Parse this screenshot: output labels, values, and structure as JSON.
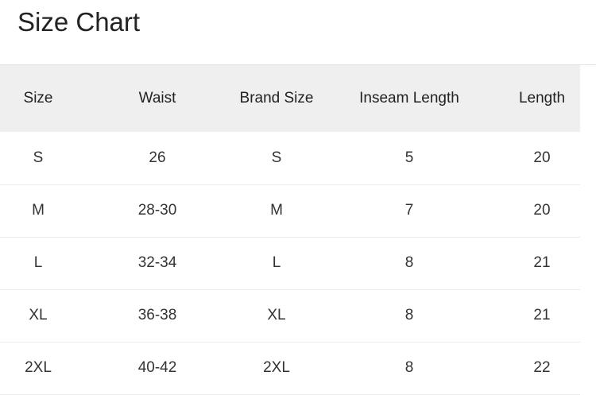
{
  "title": "Size Chart",
  "table": {
    "headers": [
      "Size",
      "Waist",
      "Brand Size",
      "Inseam Length",
      "Length"
    ],
    "rows": [
      [
        "S",
        "26",
        "S",
        "5",
        "20"
      ],
      [
        "M",
        "28-30",
        "M",
        "7",
        "20"
      ],
      [
        "L",
        "32-34",
        "L",
        "8",
        "21"
      ],
      [
        "XL",
        "36-38",
        "XL",
        "8",
        "21"
      ],
      [
        "2XL",
        "40-42",
        "2XL",
        "8",
        "22"
      ]
    ]
  }
}
